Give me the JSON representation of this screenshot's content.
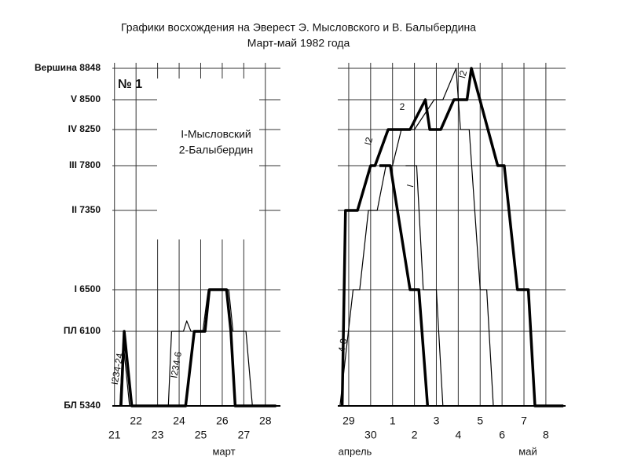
{
  "chart_data": [
    {
      "type": "line",
      "title": "Графики восхождения на Эверест Э. Мысловского и В. Балыбердина",
      "subtitle": "Март-май 1982 года",
      "annotation": "№ 1",
      "xlabel": "март",
      "xlim": [
        20.9,
        28.7
      ],
      "xticks": [
        21,
        22,
        23,
        24,
        25,
        26,
        27,
        28
      ],
      "ylim": [
        5340,
        8848
      ],
      "yticks": [
        {
          "value": 5340,
          "label": "БЛ 5340"
        },
        {
          "value": 6100,
          "label": "ПЛ 6100"
        },
        {
          "value": 6500,
          "label": "I 6500"
        },
        {
          "value": 7350,
          "label": "II 7350"
        },
        {
          "value": 7800,
          "label": "III 7800"
        },
        {
          "value": 8250,
          "label": "IV 8250"
        },
        {
          "value": 8500,
          "label": "V 8500"
        },
        {
          "value": 8848,
          "label": "Вершина 8848"
        }
      ],
      "grid": true,
      "annotations": [
        "I234-24",
        "I234-6"
      ],
      "series": [
        {
          "name": "I-Мысловский",
          "color": "#000000",
          "width": 3.5,
          "x": [
            21.3,
            21.45,
            21.8,
            24.3,
            24.7,
            25.2,
            25.4,
            26.2,
            26.4,
            26.6,
            28.5
          ],
          "values": [
            5340,
            6100,
            5340,
            5340,
            6100,
            6100,
            6500,
            6500,
            6100,
            5340,
            5340
          ]
        },
        {
          "name": "2-Балыбердин",
          "color": "#000000",
          "width": 1.2,
          "x": [
            21.25,
            21.4,
            21.7,
            23.5,
            23.65,
            24.2,
            24.35,
            24.55,
            25.1,
            25.35,
            26.3,
            26.5,
            27.1,
            27.4
          ],
          "values": [
            5340,
            6000,
            5340,
            5340,
            6100,
            6100,
            6200,
            6100,
            6100,
            6500,
            6500,
            6100,
            6100,
            5340
          ]
        }
      ]
    },
    {
      "type": "line",
      "xlabel": "апрель",
      "xlabel2": "май",
      "xlim": [
        28.5,
        38.9
      ],
      "xticks": [
        29,
        30,
        {
          "value": 31,
          "label": "1"
        },
        {
          "value": 32,
          "label": "2"
        },
        {
          "value": 33,
          "label": "3"
        },
        {
          "value": 34,
          "label": "4"
        },
        {
          "value": 35,
          "label": "5"
        },
        {
          "value": 36,
          "label": "6"
        },
        {
          "value": 37,
          "label": "7"
        },
        {
          "value": 38,
          "label": "8"
        }
      ],
      "ylim": [
        5340,
        8848
      ],
      "yticks": [
        5340,
        6100,
        6500,
        7350,
        7800,
        8250,
        8500,
        8848
      ],
      "grid": true,
      "annotations": [
        "2",
        "I2",
        "I2",
        "I",
        "4-8"
      ],
      "series": [
        {
          "color": "#000000",
          "width": 3.5,
          "x": [
            28.7,
            28.85,
            29.4,
            30.0,
            30.2,
            30.8,
            31.8,
            32.5,
            32.7,
            33.2,
            33.8,
            34.4,
            34.6,
            35.8,
            36.1,
            36.7,
            37.2,
            37.5,
            38.8,
            null,
            30.4,
            30.9,
            31.8,
            32.2,
            32.6
          ],
          "values": [
            5340,
            7350,
            7350,
            7800,
            7800,
            8250,
            8250,
            8500,
            8250,
            8250,
            8500,
            8500,
            8848,
            7800,
            7800,
            6500,
            6500,
            5340,
            5340,
            null,
            7800,
            7800,
            6500,
            6500,
            5340
          ]
        },
        {
          "color": "#000000",
          "width": 1.2,
          "x": [
            28.6,
            29.2,
            29.5,
            29.9,
            30.3,
            30.7,
            31.0,
            31.4,
            32.0,
            32.9,
            33.3,
            33.9,
            34.1,
            34.5,
            35.0,
            35.3,
            35.6,
            null,
            31.6,
            32.1,
            32.4,
            33.0,
            33.3
          ],
          "values": [
            5340,
            6500,
            6500,
            7350,
            7350,
            7800,
            7800,
            8250,
            8250,
            8500,
            8500,
            8848,
            8250,
            8250,
            6500,
            6500,
            5340,
            null,
            7800,
            7800,
            6500,
            6500,
            5340
          ]
        }
      ]
    }
  ]
}
